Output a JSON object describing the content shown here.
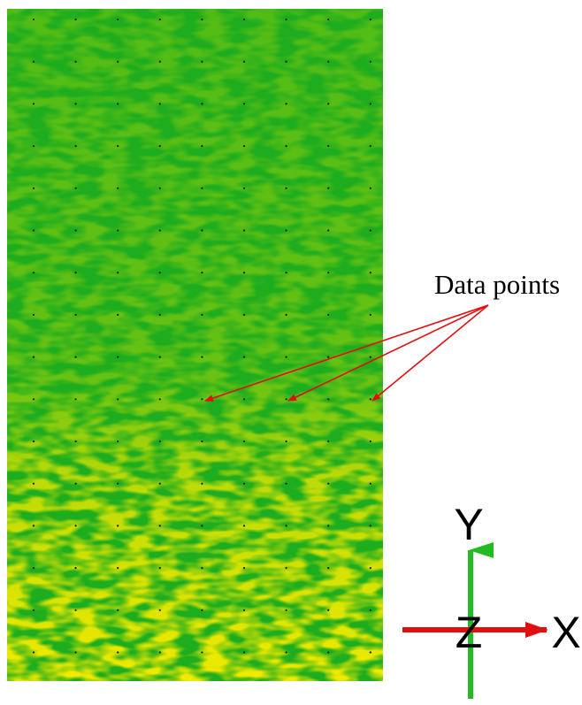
{
  "annotation": "Data points",
  "axes": {
    "y": "Y",
    "z": "Z",
    "x": "X"
  }
}
